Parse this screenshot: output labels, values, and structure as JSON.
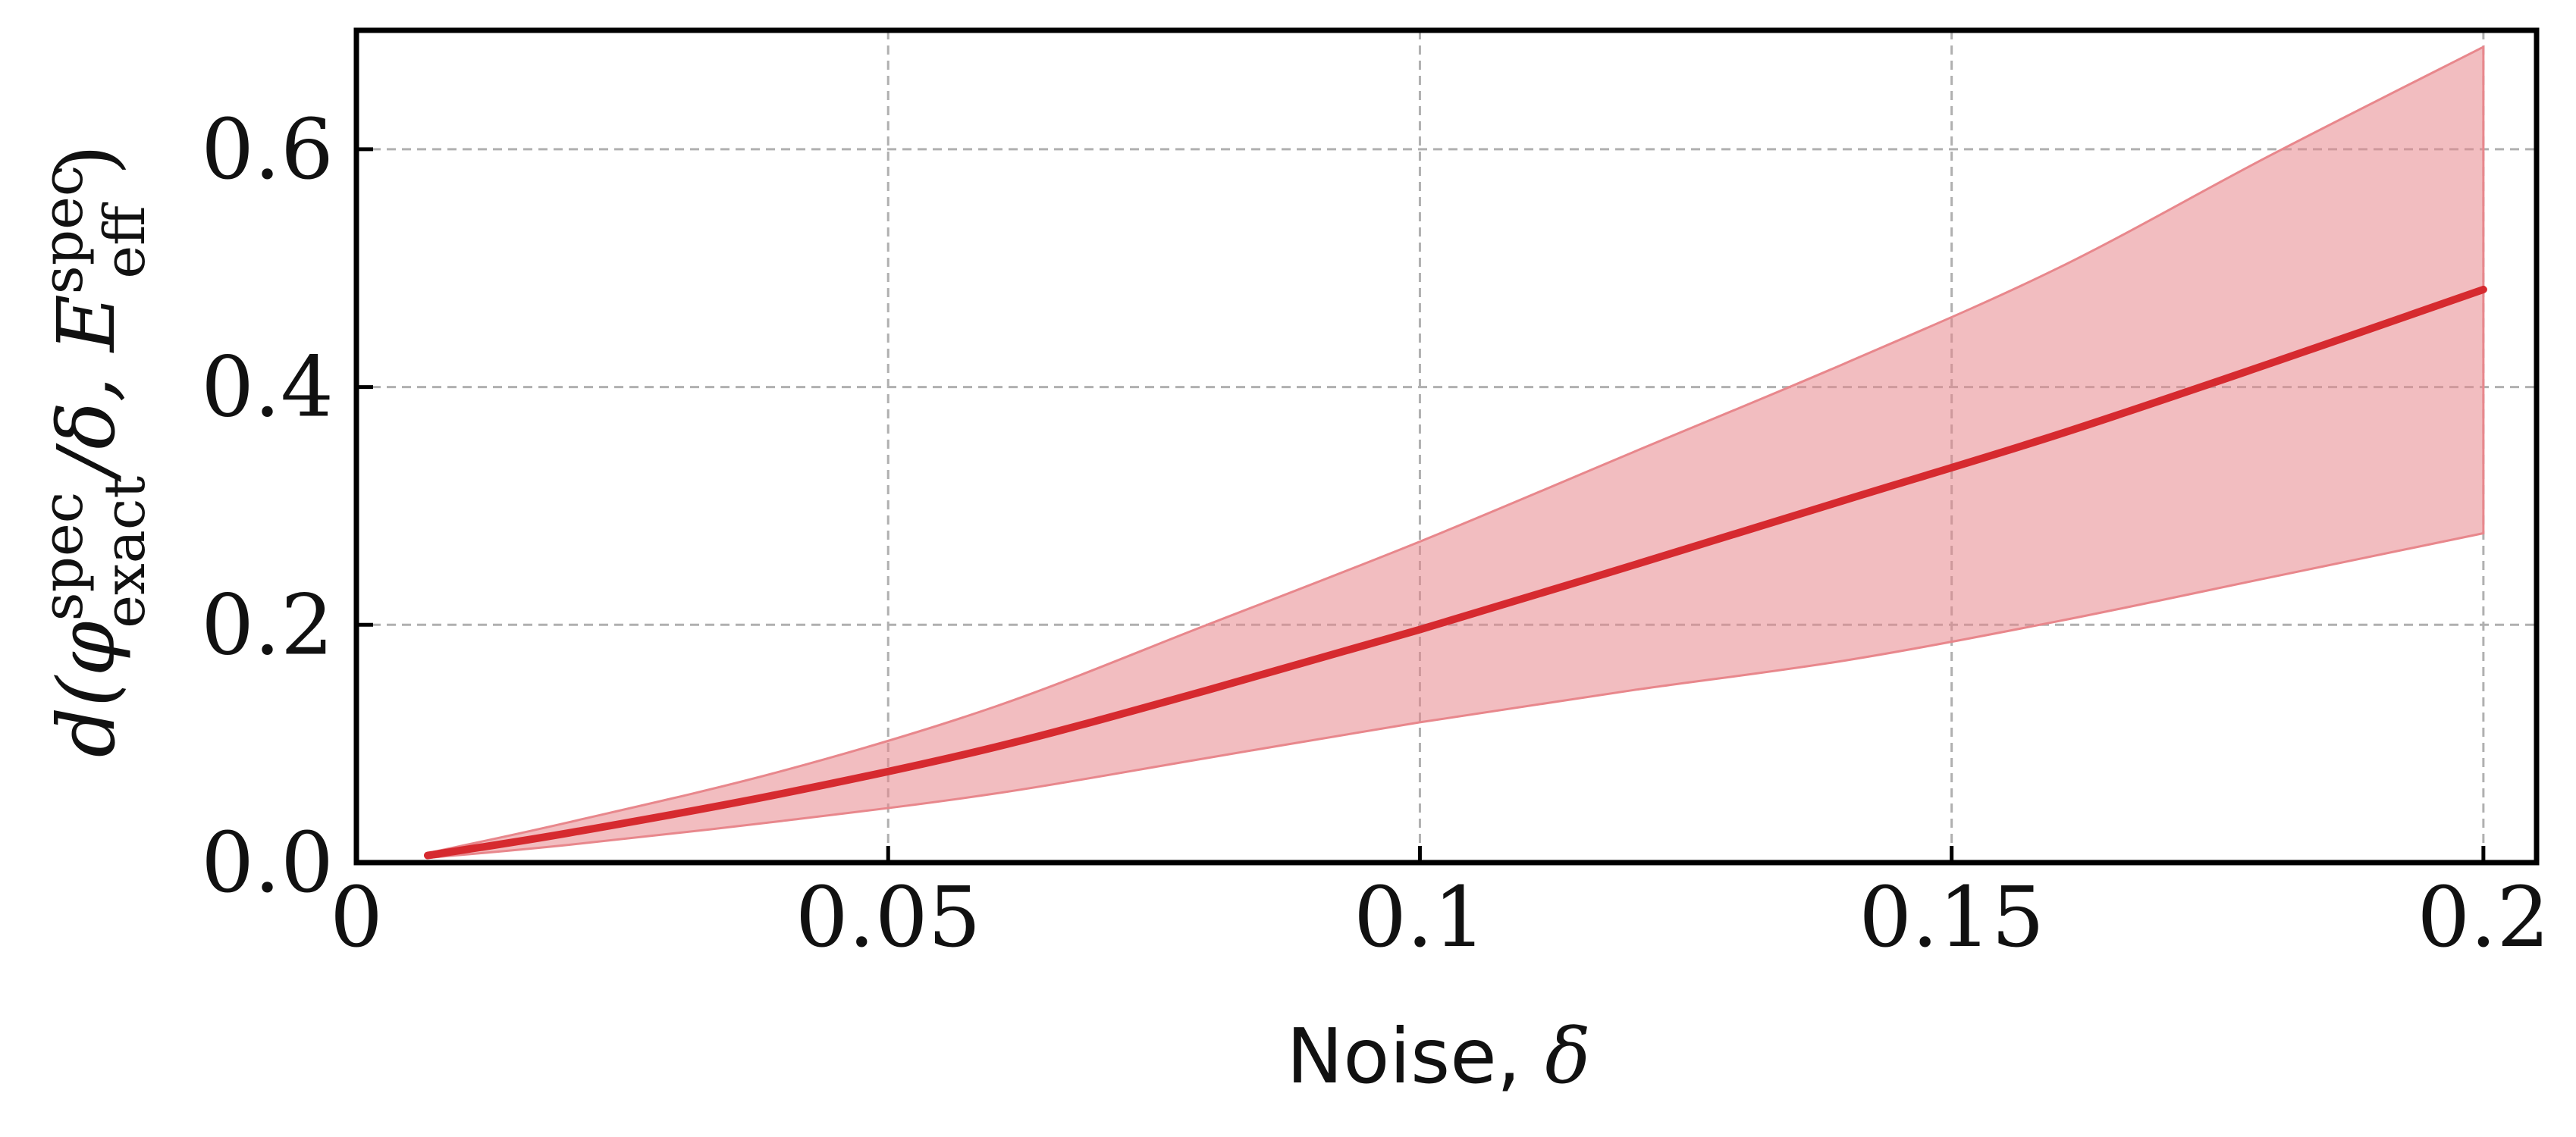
{
  "chart_data": {
    "type": "line",
    "title": "",
    "xlabel": {
      "text": "Noise, ",
      "symbol": "δ"
    },
    "ylabel": {
      "d_open": "d(",
      "phi": "φ",
      "phi_sup": "spec",
      "phi_sub": "exact",
      "mid": "/δ, ",
      "E": "E",
      "E_sup": "spec",
      "E_sub": "eff",
      "close": ")"
    },
    "xlim": [
      0,
      0.205
    ],
    "ylim": [
      0,
      0.7
    ],
    "xticks": [
      0,
      0.05,
      0.1,
      0.15,
      0.2
    ],
    "xtick_labels": [
      "0",
      "0.05",
      "0.1",
      "0.15",
      "0.2"
    ],
    "yticks": [
      0,
      0.2,
      0.4,
      0.6
    ],
    "ytick_labels": [
      "0.0",
      "0.2",
      "0.4",
      "0.6"
    ],
    "grid": true,
    "series": [
      {
        "x": [
          0.0067,
          0.02,
          0.04,
          0.06,
          0.08,
          0.1,
          0.12,
          0.14,
          0.16,
          0.18,
          0.2
        ],
        "values": [
          0.006,
          0.025,
          0.058,
          0.097,
          0.145,
          0.196,
          0.25,
          0.305,
          0.36,
          0.42,
          0.482
        ],
        "lower": [
          0.004,
          0.015,
          0.035,
          0.058,
          0.088,
          0.118,
          0.145,
          0.17,
          0.203,
          0.24,
          0.277
        ],
        "upper": [
          0.008,
          0.034,
          0.077,
          0.131,
          0.2,
          0.27,
          0.345,
          0.42,
          0.5,
          0.595,
          0.686
        ],
        "color": "#d62a2f",
        "band_color": "#e8878c"
      }
    ]
  }
}
